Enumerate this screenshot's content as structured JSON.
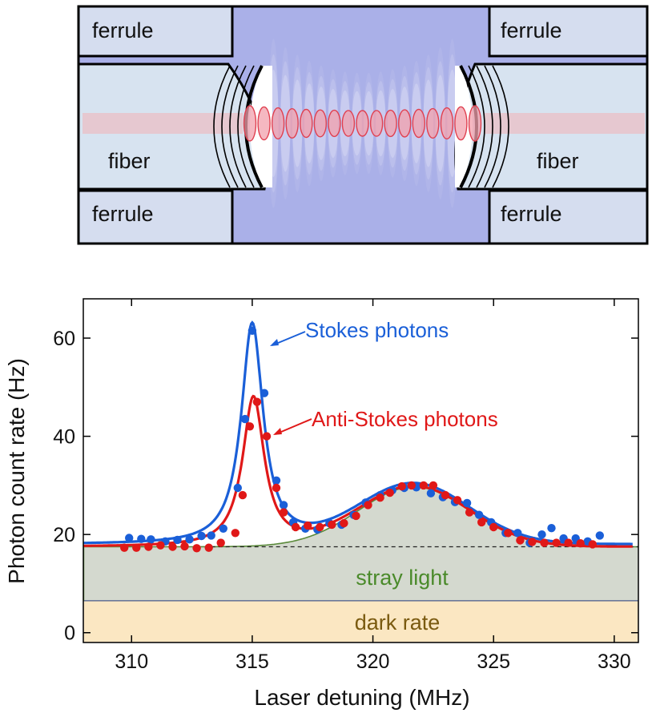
{
  "diagram": {
    "labels": {
      "ferrule_top_left": "ferrule",
      "ferrule_top_right": "ferrule",
      "ferrule_bottom_left": "ferrule",
      "ferrule_bottom_right": "ferrule",
      "fiber_left": "fiber",
      "fiber_right": "fiber"
    },
    "colors": {
      "cavity": "#aab0e8",
      "ferrule": "#d5ddef",
      "fiber": "#d7e3f0",
      "beam": "#e8c4cc",
      "standing_wave": "#e04050"
    }
  },
  "chart_data": {
    "type": "scatter",
    "xlabel": "Laser detuning (MHz)",
    "ylabel": "Photon count rate (Hz)",
    "xlim": [
      308,
      331
    ],
    "ylim": [
      -2,
      68
    ],
    "xticks": [
      310,
      315,
      320,
      325,
      330
    ],
    "yticks": [
      0,
      20,
      40,
      60
    ],
    "annotations": {
      "stokes": "Stokes photons",
      "anti_stokes": "Anti-Stokes photons",
      "stray": "stray light",
      "dark": "dark rate"
    },
    "colors": {
      "stokes": "#1a5fd8",
      "anti_stokes": "#e01818",
      "stray_fill": "#d4d9cf",
      "stray_line": "#5a8a3a",
      "stray_text": "#4a8a2a",
      "dark_fill": "#fbe7c2",
      "dark_text": "#7a5a10",
      "band_edge": "#4a5a8a"
    },
    "stray_light": {
      "baseline": 17.5,
      "peak_center": 321.7,
      "peak_amp": 12.2,
      "peak_width": 2.3
    },
    "dark_rate": {
      "value": 6.5
    },
    "dashed_level": 17.5,
    "stokes_fit": {
      "baseline": 18.0,
      "center": 315.0,
      "amp": 45.0,
      "hwhm": 0.55
    },
    "anti_stokes_fit": {
      "baseline": 17.5,
      "center": 315.05,
      "amp": 30.5,
      "hwhm": 0.55
    },
    "series": [
      {
        "name": "Stokes photons",
        "points": [
          [
            309.9,
            19.3
          ],
          [
            310.4,
            19.1
          ],
          [
            310.8,
            19.0
          ],
          [
            311.4,
            18.6
          ],
          [
            311.9,
            18.9
          ],
          [
            312.4,
            19.0
          ],
          [
            312.9,
            19.7
          ],
          [
            313.3,
            19.8
          ],
          [
            313.8,
            21.2
          ],
          [
            314.4,
            29.5
          ],
          [
            314.7,
            43.5
          ],
          [
            315.0,
            61.5
          ],
          [
            315.5,
            48.8
          ],
          [
            316.0,
            31.0
          ],
          [
            316.3,
            26.0
          ],
          [
            316.7,
            22.5
          ],
          [
            317.2,
            21.2
          ],
          [
            317.7,
            21.0
          ],
          [
            318.2,
            22.3
          ],
          [
            318.7,
            22.0
          ],
          [
            319.2,
            24.0
          ],
          [
            319.7,
            26.5
          ],
          [
            320.3,
            28.0
          ],
          [
            320.8,
            29.0
          ],
          [
            321.3,
            29.5
          ],
          [
            321.8,
            29.6
          ],
          [
            322.4,
            28.4
          ],
          [
            322.9,
            27.6
          ],
          [
            323.4,
            26.6
          ],
          [
            323.9,
            26.4
          ],
          [
            324.4,
            24.0
          ],
          [
            324.9,
            22.5
          ],
          [
            325.5,
            20.3
          ],
          [
            326.0,
            20.3
          ],
          [
            326.5,
            18.3
          ],
          [
            327.0,
            20.0
          ],
          [
            327.4,
            21.3
          ],
          [
            327.9,
            19.2
          ],
          [
            328.4,
            19.2
          ],
          [
            328.9,
            18.6
          ],
          [
            329.4,
            19.8
          ]
        ]
      },
      {
        "name": "Anti-Stokes photons",
        "points": [
          [
            309.7,
            17.3
          ],
          [
            310.2,
            17.3
          ],
          [
            310.7,
            17.5
          ],
          [
            311.2,
            17.8
          ],
          [
            311.7,
            17.5
          ],
          [
            312.2,
            17.6
          ],
          [
            312.7,
            17.2
          ],
          [
            313.2,
            17.3
          ],
          [
            313.7,
            18.3
          ],
          [
            314.3,
            20.3
          ],
          [
            314.6,
            28.0
          ],
          [
            314.9,
            42.0
          ],
          [
            315.2,
            47.0
          ],
          [
            315.6,
            40.0
          ],
          [
            316.0,
            29.5
          ],
          [
            316.3,
            24.5
          ],
          [
            316.8,
            21.5
          ],
          [
            317.3,
            21.8
          ],
          [
            317.8,
            21.5
          ],
          [
            318.3,
            22.0
          ],
          [
            318.8,
            22.3
          ],
          [
            319.3,
            23.8
          ],
          [
            319.8,
            26.0
          ],
          [
            320.3,
            27.5
          ],
          [
            320.7,
            28.5
          ],
          [
            321.2,
            29.8
          ],
          [
            321.6,
            30.0
          ],
          [
            322.1,
            30.0
          ],
          [
            322.5,
            30.0
          ],
          [
            323.0,
            28.0
          ],
          [
            323.5,
            27.0
          ],
          [
            324.0,
            24.5
          ],
          [
            324.5,
            22.5
          ],
          [
            325.0,
            21.5
          ],
          [
            325.6,
            20.3
          ],
          [
            326.1,
            18.8
          ],
          [
            326.6,
            18.5
          ],
          [
            327.1,
            18.3
          ],
          [
            327.6,
            18.3
          ],
          [
            328.1,
            18.3
          ],
          [
            328.6,
            18.2
          ],
          [
            329.1,
            18.0
          ]
        ]
      }
    ]
  }
}
